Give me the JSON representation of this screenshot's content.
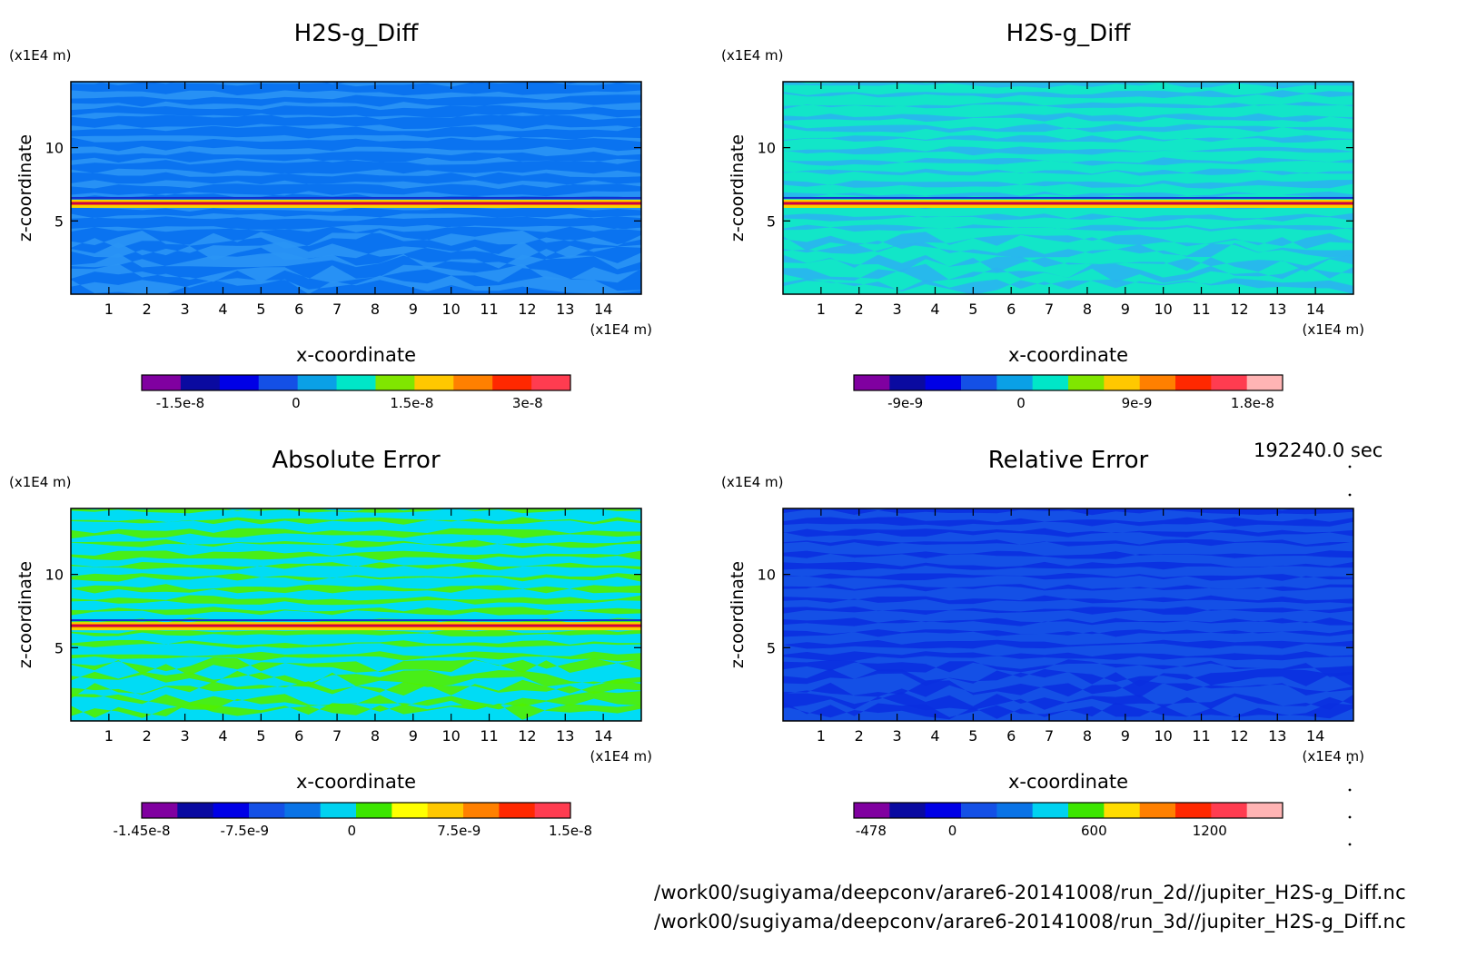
{
  "timestamp": "192240.0 sec",
  "footer_lines": [
    "/work00/sugiyama/deepconv/arare6-20141008/run_2d//jupiter_H2S-g_Diff.nc",
    "/work00/sugiyama/deepconv/arare6-20141008/run_3d//jupiter_H2S-g_Diff.nc"
  ],
  "chart_data": [
    {
      "type": "heatmap",
      "title": "H2S-g_Diff",
      "xlabel": "x-coordinate",
      "ylabel": "z-coordinate",
      "x_unit": "(x1E4 m)",
      "y_unit": "(x1E4 m)",
      "xlim": [
        0,
        15
      ],
      "ylim": [
        0,
        14.5
      ],
      "x_ticks": [
        1,
        2,
        3,
        4,
        5,
        6,
        7,
        8,
        9,
        10,
        11,
        12,
        13,
        14
      ],
      "y_ticks": [
        5,
        10
      ],
      "colorbar": {
        "colors": [
          "#8000a0",
          "#0a0aa0",
          "#0000e6",
          "#1450e6",
          "#0aa0e6",
          "#00e6c8",
          "#80e600",
          "#ffc800",
          "#ff8000",
          "#ff2800",
          "#ff3c50"
        ],
        "tick_labels": [
          "-1.5e-8",
          "0",
          "1.5e-8",
          "3e-8"
        ]
      },
      "background": "#0a73f0",
      "stripe": "#2a95f5",
      "hot_band_z": 6.2
    },
    {
      "type": "heatmap",
      "title": "H2S-g_Diff",
      "xlabel": "x-coordinate",
      "ylabel": "z-coordinate",
      "x_unit": "(x1E4 m)",
      "y_unit": "(x1E4 m)",
      "xlim": [
        0,
        15
      ],
      "ylim": [
        0,
        14.5
      ],
      "x_ticks": [
        1,
        2,
        3,
        4,
        5,
        6,
        7,
        8,
        9,
        10,
        11,
        12,
        13,
        14
      ],
      "y_ticks": [
        5,
        10
      ],
      "colorbar": {
        "colors": [
          "#8000a0",
          "#0a0aa0",
          "#0000e6",
          "#1450e6",
          "#0aa0e6",
          "#00e6c8",
          "#80e600",
          "#ffc800",
          "#ff8000",
          "#ff2800",
          "#ff3c50",
          "#ffb4b4"
        ],
        "tick_labels": [
          "-9e-9",
          "0",
          "9e-9",
          "1.8e-8"
        ]
      },
      "background": "#12e6c8",
      "stripe": "#2ab4f0",
      "hot_band_z": 6.2
    },
    {
      "type": "heatmap",
      "title": "Absolute Error",
      "xlabel": "x-coordinate",
      "ylabel": "z-coordinate",
      "x_unit": "(x1E4 m)",
      "y_unit": "(x1E4 m)",
      "xlim": [
        0,
        15
      ],
      "ylim": [
        0,
        14.5
      ],
      "x_ticks": [
        1,
        2,
        3,
        4,
        5,
        6,
        7,
        8,
        9,
        10,
        11,
        12,
        13,
        14
      ],
      "y_ticks": [
        5,
        10
      ],
      "colorbar": {
        "colors": [
          "#8000a0",
          "#0a0aa0",
          "#0000e6",
          "#1450e6",
          "#0a73e6",
          "#00d2f0",
          "#3ce600",
          "#ffff00",
          "#ffc800",
          "#ff8000",
          "#ff2800",
          "#ff3c50"
        ],
        "tick_labels": [
          "-1.45e-8",
          "-7.5e-9",
          "0",
          "7.5e-9",
          "1.5e-8"
        ]
      },
      "background": "#00dcf5",
      "stripe": "#50f000",
      "hot_band_z": 6.5
    },
    {
      "type": "heatmap",
      "title": "Relative Error",
      "xlabel": "x-coordinate",
      "ylabel": "z-coordinate",
      "x_unit": "(x1E4 m)",
      "y_unit": "(x1E4 m)",
      "xlim": [
        0,
        15
      ],
      "ylim": [
        0,
        14.5
      ],
      "x_ticks": [
        1,
        2,
        3,
        4,
        5,
        6,
        7,
        8,
        9,
        10,
        11,
        12,
        13,
        14
      ],
      "y_ticks": [
        5,
        10
      ],
      "colorbar": {
        "colors": [
          "#8000a0",
          "#0a0aa0",
          "#0000e6",
          "#1450e6",
          "#0a73e6",
          "#00d2f0",
          "#3ce600",
          "#ffdc00",
          "#ff8000",
          "#ff2800",
          "#ff3c50",
          "#ffb4b4"
        ],
        "tick_labels": [
          "-478",
          "0",
          "600",
          "1200"
        ]
      },
      "background": "#1450e6",
      "stripe": "#0a2fe0",
      "hot_band_z": null
    }
  ]
}
